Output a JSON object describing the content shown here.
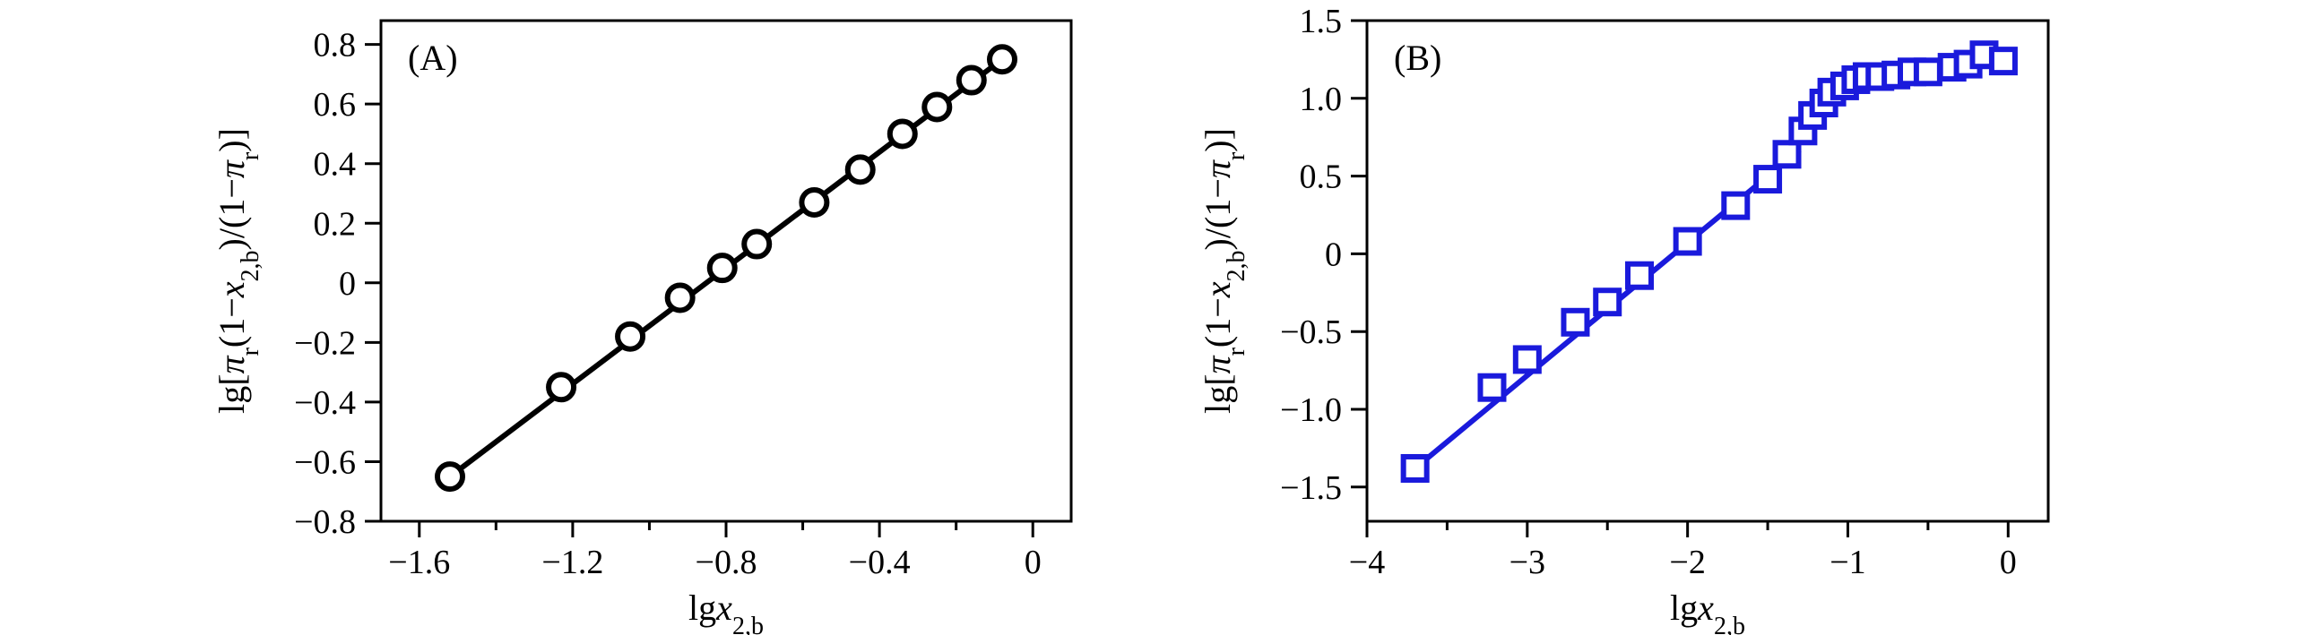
{
  "chart_data": [
    {
      "type": "scatter",
      "panel_label": "(A)",
      "xlabel": "lgx2,b",
      "ylabel": "lg[πr(1−x2,b)/(1−πr)]",
      "xlim": [
        -1.7,
        0.1
      ],
      "ylim": [
        -0.8,
        0.88
      ],
      "xticks": [
        -1.6,
        -1.2,
        -0.8,
        -0.4,
        0
      ],
      "xtick_labels": [
        "−1.6",
        "−1.2",
        "−0.8",
        "−0.4",
        "0"
      ],
      "yticks": [
        -0.8,
        -0.6,
        -0.4,
        -0.2,
        0,
        0.2,
        0.4,
        0.6,
        0.8
      ],
      "ytick_labels": [
        "−0.8",
        "−0.6",
        "−0.4",
        "−0.2",
        "0",
        "0.2",
        "0.4",
        "0.6",
        "0.8"
      ],
      "grid": false,
      "color": "#000000",
      "marker": "circle",
      "series": [
        {
          "x": [
            -1.52,
            -1.23,
            -1.05,
            -0.92,
            -0.81,
            -0.72,
            -0.57,
            -0.45,
            -0.34,
            -0.25,
            -0.16,
            -0.08
          ],
          "y": [
            -0.65,
            -0.35,
            -0.18,
            -0.05,
            0.05,
            0.13,
            0.27,
            0.38,
            0.5,
            0.59,
            0.68,
            0.75
          ]
        }
      ],
      "fit_line": {
        "x": [
          -1.52,
          -0.08
        ],
        "y": [
          -0.65,
          0.75
        ]
      }
    },
    {
      "type": "scatter",
      "panel_label": "(B)",
      "xlabel": "lgx2,b",
      "ylabel": "lg[πr(1−x2,b)/(1−πr)]",
      "xlim": [
        -4,
        0.25
      ],
      "ylim": [
        -1.72,
        1.5
      ],
      "xticks": [
        -4,
        -3,
        -2,
        -1,
        0
      ],
      "xtick_labels": [
        "−4",
        "−3",
        "−2",
        "−1",
        "0"
      ],
      "yticks": [
        -1.5,
        -1.0,
        -0.5,
        0,
        0.5,
        1.0,
        1.5
      ],
      "ytick_labels": [
        "−1.5",
        "−1.0",
        "−0.5",
        "0",
        "0.5",
        "1.0",
        "1.5"
      ],
      "grid": false,
      "color": "#1a1adc",
      "marker": "square",
      "series": [
        {
          "x": [
            -3.7,
            -3.22,
            -3.0,
            -2.7,
            -2.5,
            -2.3,
            -2.0,
            -1.7,
            -1.5,
            -1.38,
            -1.28,
            -1.22,
            -1.15,
            -1.1,
            -1.02,
            -0.95,
            -0.88,
            -0.8,
            -0.7,
            -0.6,
            -0.5,
            -0.35,
            -0.25,
            -0.15,
            -0.03
          ],
          "y": [
            -1.38,
            -0.86,
            -0.68,
            -0.44,
            -0.31,
            -0.14,
            0.08,
            0.31,
            0.48,
            0.64,
            0.79,
            0.89,
            0.97,
            1.04,
            1.08,
            1.12,
            1.14,
            1.14,
            1.15,
            1.17,
            1.17,
            1.2,
            1.22,
            1.28,
            1.24
          ]
        }
      ],
      "fit_line": {
        "x": [
          -3.7,
          -1.3
        ],
        "y": [
          -1.38,
          0.67
        ]
      }
    }
  ]
}
